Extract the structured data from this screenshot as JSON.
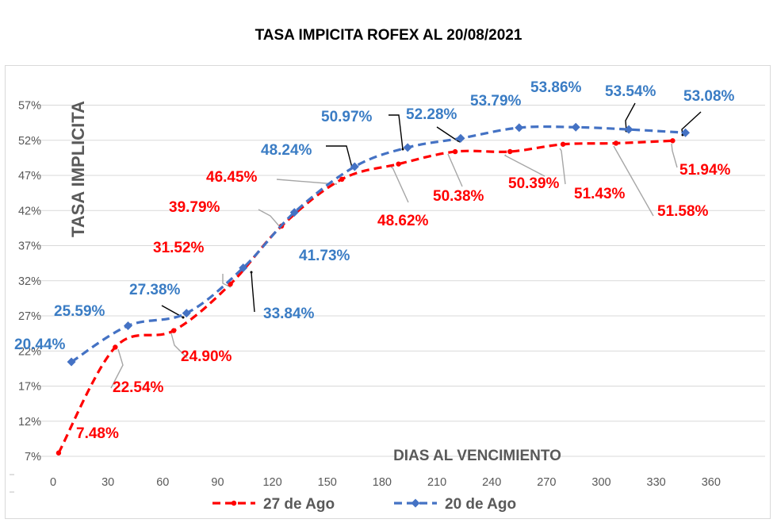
{
  "chart_data": {
    "type": "line",
    "title": "TASA IMPICITA ROFEX AL 20/08/2021",
    "xlabel": "DIAS AL VENCIMIENTO",
    "ylabel": "TASA IMPLICITA",
    "xlim": [
      0,
      360
    ],
    "ylim": [
      7,
      60
    ],
    "x_ticks": [
      "0",
      "30",
      "60",
      "90",
      "120",
      "150",
      "180",
      "210",
      "240",
      "270",
      "300",
      "330",
      "360"
    ],
    "y_ticks": [
      "7%",
      "12%",
      "17%",
      "22%",
      "27%",
      "32%",
      "37%",
      "42%",
      "47%",
      "52%",
      "57%"
    ],
    "grid": true,
    "legend_position": "bottom",
    "series": [
      {
        "name": "27 de Ago",
        "color": "#ff0000",
        "x": [
          3,
          34,
          66,
          97,
          125,
          158,
          189,
          220,
          250,
          279,
          308,
          339
        ],
        "values": [
          7.48,
          22.54,
          24.9,
          31.52,
          39.79,
          46.45,
          48.62,
          50.38,
          50.39,
          51.43,
          51.58,
          51.94
        ],
        "labels": [
          "7.48%",
          "22.54%",
          "24.90%",
          "31.52%",
          "39.79%",
          "46.45%",
          "48.62%",
          "50.38%",
          "50.39%",
          "51.43%",
          "51.58%",
          "51.94%"
        ]
      },
      {
        "name": "20 de Ago",
        "color": "#4472c4",
        "x": [
          10,
          41,
          73,
          104,
          132,
          165,
          194,
          223,
          255,
          286,
          315,
          346
        ],
        "values": [
          20.44,
          25.59,
          27.38,
          33.84,
          41.73,
          48.24,
          50.97,
          52.28,
          53.79,
          53.86,
          53.54,
          53.08
        ],
        "labels": [
          "20.44%",
          "25.59%",
          "27.38%",
          "33.84%",
          "41.73%",
          "48.24%",
          "50.97%",
          "52.28%",
          "53.79%",
          "53.86%",
          "53.54%",
          "53.08%"
        ]
      }
    ]
  }
}
